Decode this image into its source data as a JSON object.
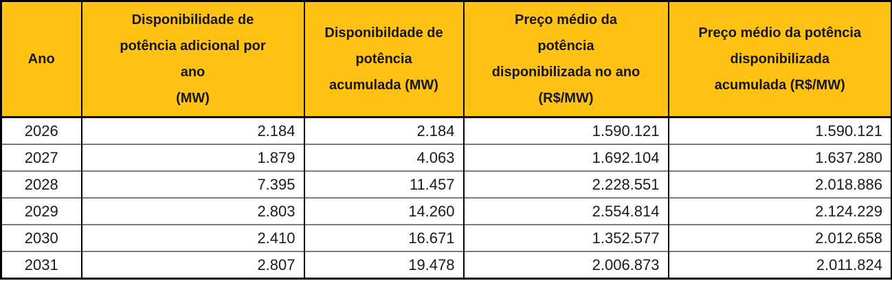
{
  "colors": {
    "header_bg": "#FFC112",
    "header_text": "#161616",
    "cell_text": "#1a1a1a",
    "outer_border": "#000000",
    "grid_vertical": "#000000",
    "grid_horizontal": "#7a7a7a"
  },
  "table": {
    "columns": [
      {
        "label": "Ano"
      },
      {
        "label": "Disponibilidade de\npotência adicional por\nano\n(MW)"
      },
      {
        "label": "Disponibildade de\npotência\nacumulada (MW)"
      },
      {
        "label": "Preço médio da\npotência\ndisponibilizada no ano\n(R$/MW)"
      },
      {
        "label": "Preço médio da potência\ndisponibilizada\nacumulada (R$/MW)"
      }
    ],
    "rows": [
      [
        "2026",
        "2.184",
        "2.184",
        "1.590.121",
        "1.590.121"
      ],
      [
        "2027",
        "1.879",
        "4.063",
        "1.692.104",
        "1.637.280"
      ],
      [
        "2028",
        "7.395",
        "11.457",
        "2.228.551",
        "2.018.886"
      ],
      [
        "2029",
        "2.803",
        "14.260",
        "2.554.814",
        "2.124.229"
      ],
      [
        "2030",
        "2.410",
        "16.671",
        "1.352.577",
        "2.012.658"
      ],
      [
        "2031",
        "2.807",
        "19.478",
        "2.006.873",
        "2.011.824"
      ]
    ]
  },
  "chart_data": {
    "type": "table",
    "title": "",
    "columns": [
      "Ano",
      "Disponibilidade de potência adicional por ano (MW)",
      "Disponibildade de potência acumulada (MW)",
      "Preço médio da potência disponibilizada no ano (R$/MW)",
      "Preço médio da potência disponibilizada acumulada (R$/MW)"
    ],
    "rows": [
      [
        "2026",
        "2.184",
        "2.184",
        "1.590.121",
        "1.590.121"
      ],
      [
        "2027",
        "1.879",
        "4.063",
        "1.692.104",
        "1.637.280"
      ],
      [
        "2028",
        "7.395",
        "11.457",
        "2.228.551",
        "2.018.886"
      ],
      [
        "2029",
        "2.803",
        "14.260",
        "2.554.814",
        "2.124.229"
      ],
      [
        "2030",
        "2.410",
        "16.671",
        "1.352.577",
        "2.012.658"
      ],
      [
        "2031",
        "2.807",
        "19.478",
        "2.006.873",
        "2.011.824"
      ]
    ],
    "series": [
      {
        "name": "Ano",
        "values": [
          2026,
          2027,
          2028,
          2029,
          2030,
          2031
        ]
      },
      {
        "name": "Disponibilidade de potência adicional por ano (MW)",
        "values": [
          2184,
          1879,
          7395,
          2803,
          2410,
          2807
        ]
      },
      {
        "name": "Disponibildade de potência acumulada (MW)",
        "values": [
          2184,
          4063,
          11457,
          14260,
          16671,
          19478
        ]
      },
      {
        "name": "Preço médio da potência disponibilizada no ano (R$/MW)",
        "values": [
          1590121,
          1692104,
          2228551,
          2554814,
          1352577,
          2006873
        ]
      },
      {
        "name": "Preço médio da potência disponibilizada acumulada (R$/MW)",
        "values": [
          1590121,
          1637280,
          2018886,
          2124229,
          2012658,
          2011824
        ]
      }
    ],
    "number_format": "pt-BR (ponto como separador de milhar)"
  }
}
